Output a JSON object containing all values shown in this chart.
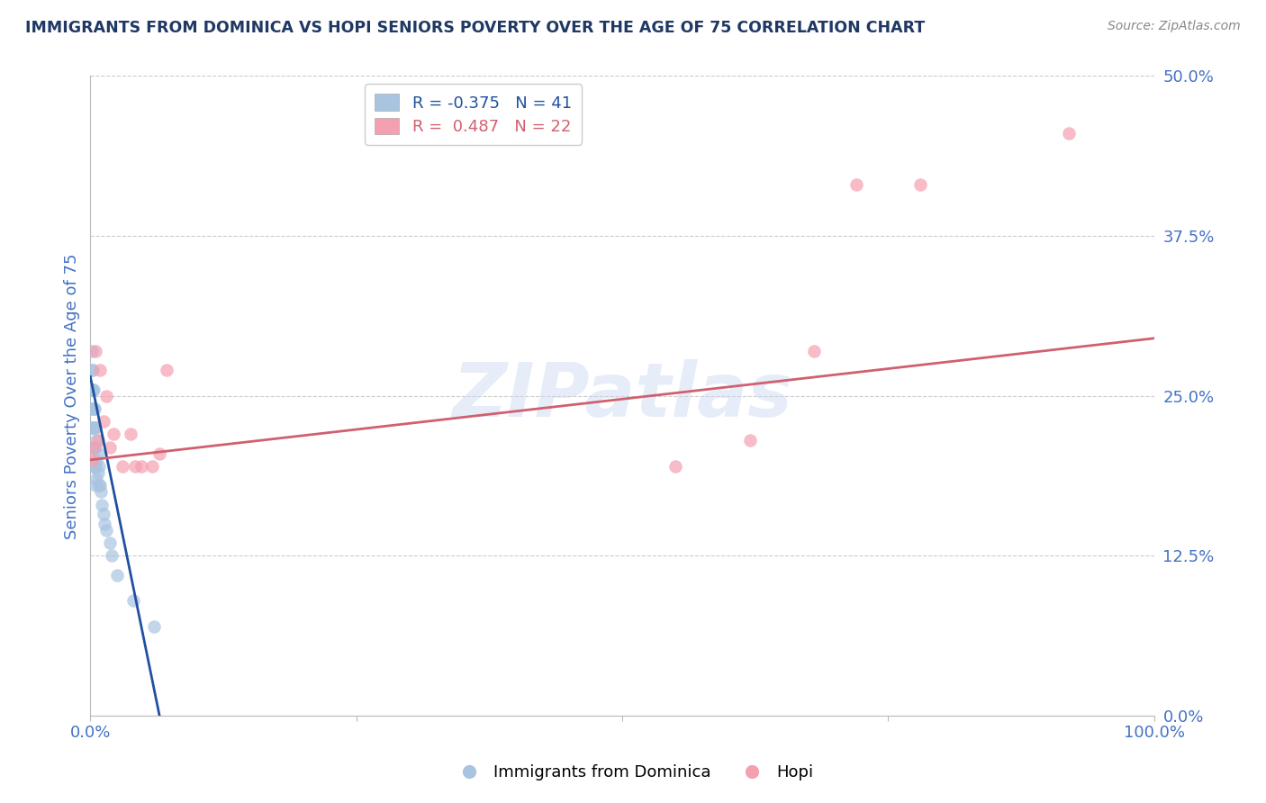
{
  "title": "IMMIGRANTS FROM DOMINICA VS HOPI SENIORS POVERTY OVER THE AGE OF 75 CORRELATION CHART",
  "source": "Source: ZipAtlas.com",
  "ylabel": "Seniors Poverty Over the Age of 75",
  "xlabel": "",
  "xlim": [
    0.0,
    1.0
  ],
  "ylim": [
    0.0,
    0.5
  ],
  "yticks": [
    0.0,
    0.125,
    0.25,
    0.375,
    0.5
  ],
  "ytick_labels": [
    "0.0%",
    "12.5%",
    "25.0%",
    "37.5%",
    "50.0%"
  ],
  "xticks": [
    0.0,
    0.25,
    0.5,
    0.75,
    1.0
  ],
  "xtick_labels": [
    "0.0%",
    "",
    "",
    "",
    "100.0%"
  ],
  "watermark": "ZIPatlas",
  "blue_R": "-0.375",
  "blue_N": "41",
  "pink_R": "0.487",
  "pink_N": "22",
  "blue_color": "#a8c4e0",
  "pink_color": "#f4a0b0",
  "blue_line_color": "#2050a0",
  "pink_line_color": "#d06070",
  "axis_label_color": "#4472c4",
  "title_color": "#1f3864",
  "blue_scatter_x": [
    0.001,
    0.001,
    0.001,
    0.001,
    0.001,
    0.002,
    0.002,
    0.002,
    0.002,
    0.002,
    0.003,
    0.003,
    0.003,
    0.003,
    0.003,
    0.004,
    0.004,
    0.004,
    0.004,
    0.005,
    0.005,
    0.005,
    0.005,
    0.006,
    0.006,
    0.006,
    0.007,
    0.007,
    0.008,
    0.008,
    0.009,
    0.01,
    0.011,
    0.012,
    0.013,
    0.015,
    0.018,
    0.02,
    0.025,
    0.04,
    0.06
  ],
  "blue_scatter_y": [
    0.285,
    0.27,
    0.255,
    0.24,
    0.225,
    0.27,
    0.255,
    0.24,
    0.225,
    0.21,
    0.255,
    0.24,
    0.225,
    0.21,
    0.195,
    0.24,
    0.225,
    0.21,
    0.195,
    0.225,
    0.21,
    0.195,
    0.18,
    0.215,
    0.2,
    0.185,
    0.205,
    0.19,
    0.195,
    0.18,
    0.18,
    0.175,
    0.165,
    0.158,
    0.15,
    0.145,
    0.135,
    0.125,
    0.11,
    0.09,
    0.07
  ],
  "pink_scatter_x": [
    0.002,
    0.003,
    0.005,
    0.007,
    0.009,
    0.012,
    0.015,
    0.018,
    0.022,
    0.03,
    0.038,
    0.042,
    0.048,
    0.058,
    0.065,
    0.072,
    0.55,
    0.62,
    0.68,
    0.72,
    0.78,
    0.92
  ],
  "pink_scatter_y": [
    0.2,
    0.21,
    0.285,
    0.215,
    0.27,
    0.23,
    0.25,
    0.21,
    0.22,
    0.195,
    0.22,
    0.195,
    0.195,
    0.195,
    0.205,
    0.27,
    0.195,
    0.215,
    0.285,
    0.415,
    0.415,
    0.455
  ],
  "blue_line_x0": 0.0,
  "blue_line_y0": 0.265,
  "blue_line_x1": 0.065,
  "blue_line_y1": 0.0,
  "pink_line_x0": 0.0,
  "pink_line_y0": 0.2,
  "pink_line_x1": 1.0,
  "pink_line_y1": 0.295
}
